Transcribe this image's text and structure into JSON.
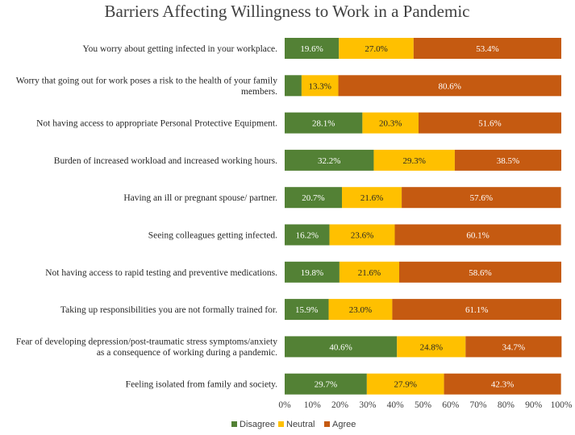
{
  "chart_data": {
    "type": "bar",
    "orientation": "horizontal",
    "stacked": true,
    "title": "Barriers Affecting Willingness to Work in a Pandemic",
    "categories": [
      [
        "You worry about getting infected in your workplace."
      ],
      [
        "Worry that going out for work poses a risk to the health of your family",
        "members."
      ],
      [
        "Not having access to appropriate Personal Protective Equipment."
      ],
      [
        "Burden of increased workload and increased working hours."
      ],
      [
        "Having an ill or pregnant spouse/ partner."
      ],
      [
        "Seeing colleagues getting infected."
      ],
      [
        "Not having access to rapid testing and preventive medications."
      ],
      [
        "Taking up responsibilities you are not formally trained for."
      ],
      [
        "Fear of developing depression/post-traumatic stress symptoms/anxiety",
        "as a consequence of working during a pandemic."
      ],
      [
        "Feeling isolated from family and society."
      ]
    ],
    "series": [
      {
        "name": "Disagree",
        "color": "#538135",
        "label_color": "#ffffff",
        "values": [
          19.6,
          6.1,
          28.1,
          32.2,
          20.7,
          16.2,
          19.8,
          15.9,
          40.6,
          29.7
        ],
        "labels": [
          "19.6%",
          "",
          "28.1%",
          "32.2%",
          "20.7%",
          "16.2%",
          "19.8%",
          "15.9%",
          "40.6%",
          "29.7%"
        ]
      },
      {
        "name": "Neutral",
        "color": "#ffc000",
        "label_color": "#262626",
        "values": [
          27.0,
          13.3,
          20.3,
          29.3,
          21.6,
          23.6,
          21.6,
          23.0,
          24.8,
          27.9
        ],
        "labels": [
          "27.0%",
          "13.3%",
          "20.3%",
          "29.3%",
          "21.6%",
          "23.6%",
          "21.6%",
          "23.0%",
          "24.8%",
          "27.9%"
        ]
      },
      {
        "name": "Agree",
        "color": "#c55a11",
        "label_color": "#ffffff",
        "values": [
          53.4,
          80.6,
          51.6,
          38.5,
          57.6,
          60.1,
          58.6,
          61.1,
          34.7,
          42.3
        ],
        "labels": [
          "53.4%",
          "80.6%",
          "51.6%",
          "38.5%",
          "57.6%",
          "60.1%",
          "58.6%",
          "61.1%",
          "34.7%",
          "42.3%"
        ]
      }
    ],
    "xlim": [
      0,
      100
    ],
    "xticks": [
      "0%",
      "10%",
      "20%",
      "30%",
      "40%",
      "50%",
      "60%",
      "70%",
      "80%",
      "90%",
      "100%"
    ],
    "grid": false,
    "legend_position": "bottom"
  }
}
